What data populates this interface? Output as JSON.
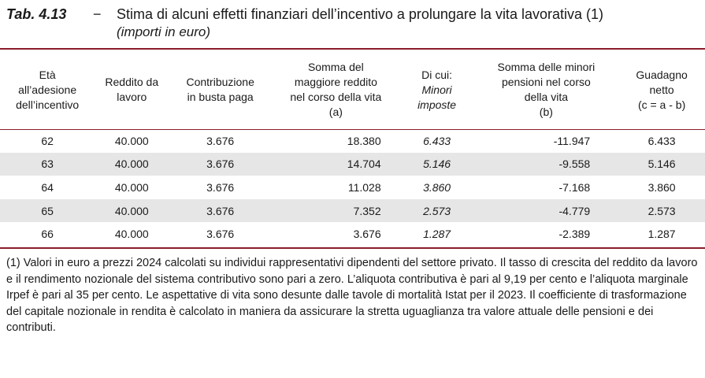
{
  "title": {
    "number": "Tab. 4.13",
    "dash": "−",
    "text": "Stima di alcuni effetti finanziari dell’incentivo a prolungare la vita lavorativa (1)",
    "subtitle": "(importi in euro)"
  },
  "table": {
    "headers": [
      [
        "Età",
        "all’adesione",
        "dell’incentivo"
      ],
      [
        "Reddito da",
        "lavoro"
      ],
      [
        "Contribuzione",
        "in busta paga"
      ],
      [
        "Somma del",
        "maggiore reddito",
        "nel corso della vita",
        "(a)"
      ],
      [
        "Di cui:",
        "Minori",
        "imposte"
      ],
      [
        "Somma delle minori",
        "pensioni nel corso",
        "della vita",
        "(b)"
      ],
      [
        "Guadagno",
        "netto",
        "(c = a - b)"
      ]
    ],
    "rows": [
      [
        "62",
        "40.000",
        "3.676",
        "18.380",
        "6.433",
        "-11.947",
        "6.433"
      ],
      [
        "63",
        "40.000",
        "3.676",
        "14.704",
        "5.146",
        "-9.558",
        "5.146"
      ],
      [
        "64",
        "40.000",
        "3.676",
        "11.028",
        "3.860",
        "-7.168",
        "3.860"
      ],
      [
        "65",
        "40.000",
        "3.676",
        "7.352",
        "2.573",
        "-4.779",
        "2.573"
      ],
      [
        "66",
        "40.000",
        "3.676",
        "3.676",
        "1.287",
        "-2.389",
        "1.287"
      ]
    ]
  },
  "footnote": "(1) Valori in euro a prezzi 2024 calcolati su individui rappresentativi dipendenti del settore privato. Il tasso di crescita del reddito da lavoro e il rendimento nozionale del sistema contributivo sono pari a zero. L’aliquota contributiva è pari al 9,19 per cento e l’aliquota marginale Irpef è pari al 35 per cento. Le aspettative di vita sono desunte dalle tavole di mortalità Istat per il 2023. Il coefficiente di trasformazione del capitale nozionale in rendita è calcolato in maniera da assicurare la stretta uguaglianza tra valore attuale delle pensioni e dei contributi.",
  "colors": {
    "rule": "#8a1c2a",
    "row_shade": "#e6e6e6"
  }
}
